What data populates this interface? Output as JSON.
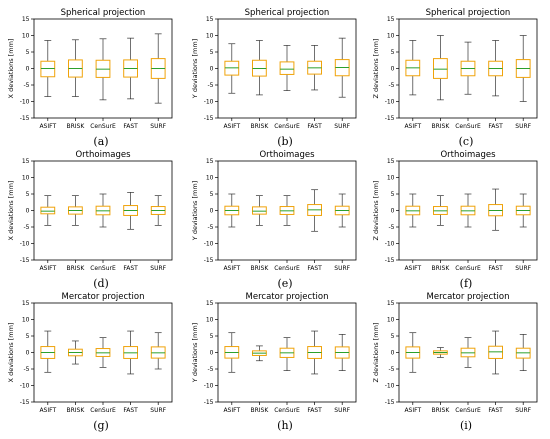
{
  "chart_data": [
    {
      "type": "box",
      "title": "Spherical projection",
      "ylabel": "X deviations [mm]",
      "label": "(a)",
      "categories": [
        "ASIFT",
        "BRISK",
        "CenSurE",
        "FAST",
        "SURF"
      ],
      "ylim": [
        -15,
        15
      ],
      "yticks": [
        -15,
        -10,
        -5,
        0,
        5,
        10,
        15
      ],
      "boxes": [
        {
          "min": -8.5,
          "q1": -2.5,
          "median": 0,
          "q3": 2.2,
          "max": 8.5
        },
        {
          "min": -8.5,
          "q1": -2.6,
          "median": 0,
          "q3": 2.6,
          "max": 8.7
        },
        {
          "min": -9.5,
          "q1": -2.7,
          "median": -0.2,
          "q3": 2.5,
          "max": 9
        },
        {
          "min": -9.2,
          "q1": -2.6,
          "median": 0,
          "q3": 2.6,
          "max": 9.2
        },
        {
          "min": -10.5,
          "q1": -3,
          "median": 0,
          "q3": 3,
          "max": 10.5
        }
      ]
    },
    {
      "type": "box",
      "title": "Spherical projection",
      "ylabel": "Y deviations [mm]",
      "label": "(b)",
      "categories": [
        "ASIFT",
        "BRISK",
        "CenSurE",
        "FAST",
        "SURF"
      ],
      "ylim": [
        -15,
        15
      ],
      "yticks": [
        -15,
        -10,
        -5,
        0,
        5,
        10,
        15
      ],
      "boxes": [
        {
          "min": -7.5,
          "q1": -2,
          "median": 0.2,
          "q3": 2.2,
          "max": 7.5
        },
        {
          "min": -8,
          "q1": -2.3,
          "median": 0,
          "q3": 2.5,
          "max": 8.5
        },
        {
          "min": -6.7,
          "q1": -1.8,
          "median": -0.2,
          "q3": 2,
          "max": 7
        },
        {
          "min": -6.5,
          "q1": -1.7,
          "median": 0.2,
          "q3": 2.2,
          "max": 7
        },
        {
          "min": -8.7,
          "q1": -2.2,
          "median": 0.3,
          "q3": 2.7,
          "max": 9.2
        }
      ]
    },
    {
      "type": "box",
      "title": "Spherical projection",
      "ylabel": "Z deviations [mm]",
      "label": "(c)",
      "categories": [
        "ASIFT",
        "BRISK",
        "CenSurE",
        "FAST",
        "SURF"
      ],
      "ylim": [
        -15,
        15
      ],
      "yticks": [
        -15,
        -10,
        -5,
        0,
        5,
        10,
        15
      ],
      "boxes": [
        {
          "min": -8,
          "q1": -2.2,
          "median": 0.2,
          "q3": 2.5,
          "max": 8.5
        },
        {
          "min": -9.5,
          "q1": -3,
          "median": -0.2,
          "q3": 3,
          "max": 10
        },
        {
          "min": -7.8,
          "q1": -2.2,
          "median": 0,
          "q3": 2.2,
          "max": 8
        },
        {
          "min": -8.3,
          "q1": -2.2,
          "median": 0,
          "q3": 2.2,
          "max": 8.5
        },
        {
          "min": -10,
          "q1": -2.7,
          "median": 0,
          "q3": 2.7,
          "max": 10
        }
      ]
    },
    {
      "type": "box",
      "title": "Orthoimages",
      "ylabel": "X deviations [mm]",
      "label": "(d)",
      "categories": [
        "ASIFT",
        "BRISK",
        "CenSurE",
        "FAST",
        "SURF"
      ],
      "ylim": [
        -15,
        15
      ],
      "yticks": [
        -15,
        -10,
        -5,
        0,
        5,
        10,
        15
      ],
      "boxes": [
        {
          "min": -4.5,
          "q1": -1,
          "median": -0.2,
          "q3": 1,
          "max": 4.5
        },
        {
          "min": -4.5,
          "q1": -1.1,
          "median": 0,
          "q3": 1.1,
          "max": 4.5
        },
        {
          "min": -5,
          "q1": -1.3,
          "median": -0.1,
          "q3": 1.3,
          "max": 5
        },
        {
          "min": -5.7,
          "q1": -1.5,
          "median": 0,
          "q3": 1.5,
          "max": 5.5
        },
        {
          "min": -4.5,
          "q1": -1.2,
          "median": 0,
          "q3": 1.2,
          "max": 4.5
        }
      ]
    },
    {
      "type": "box",
      "title": "Orthoimages",
      "ylabel": "Y deviations [mm]",
      "label": "(e)",
      "categories": [
        "ASIFT",
        "BRISK",
        "CenSurE",
        "FAST",
        "SURF"
      ],
      "ylim": [
        -15,
        15
      ],
      "yticks": [
        -15,
        -10,
        -5,
        0,
        5,
        10,
        15
      ],
      "boxes": [
        {
          "min": -5,
          "q1": -1.3,
          "median": 0,
          "q3": 1.3,
          "max": 5
        },
        {
          "min": -4.5,
          "q1": -1.1,
          "median": -0.2,
          "q3": 1.1,
          "max": 4.5
        },
        {
          "min": -4.5,
          "q1": -1.2,
          "median": -0.1,
          "q3": 1.2,
          "max": 4.5
        },
        {
          "min": -6.3,
          "q1": -1.5,
          "median": 0.2,
          "q3": 1.8,
          "max": 6.3
        },
        {
          "min": -5,
          "q1": -1.3,
          "median": 0,
          "q3": 1.3,
          "max": 5
        }
      ]
    },
    {
      "type": "box",
      "title": "Orthoimages",
      "ylabel": "Z deviations [mm]",
      "label": "(f)",
      "categories": [
        "ASIFT",
        "BRISK",
        "CenSurE",
        "FAST",
        "SURF"
      ],
      "ylim": [
        -15,
        15
      ],
      "yticks": [
        -15,
        -10,
        -5,
        0,
        5,
        10,
        15
      ],
      "boxes": [
        {
          "min": -5,
          "q1": -1.3,
          "median": -0.1,
          "q3": 1.3,
          "max": 5
        },
        {
          "min": -4.5,
          "q1": -1.2,
          "median": -0.1,
          "q3": 1.2,
          "max": 4.5
        },
        {
          "min": -5,
          "q1": -1.3,
          "median": -0.1,
          "q3": 1.3,
          "max": 5
        },
        {
          "min": -6,
          "q1": -1.6,
          "median": 0,
          "q3": 1.8,
          "max": 6.5
        },
        {
          "min": -5,
          "q1": -1.3,
          "median": 0,
          "q3": 1.3,
          "max": 5
        }
      ]
    },
    {
      "type": "box",
      "title": "Mercator projection",
      "ylabel": "X deviations [mm]",
      "label": "(g)",
      "categories": [
        "ASIFT",
        "BRISK",
        "CenSurE",
        "FAST",
        "SURF"
      ],
      "ylim": [
        -15,
        15
      ],
      "yticks": [
        -15,
        -10,
        -5,
        0,
        5,
        10,
        15
      ],
      "boxes": [
        {
          "min": -6,
          "q1": -1.8,
          "median": 0,
          "q3": 1.8,
          "max": 6.5
        },
        {
          "min": -3.5,
          "q1": -1,
          "median": 0,
          "q3": 1,
          "max": 3.5
        },
        {
          "min": -4.5,
          "q1": -1.2,
          "median": -0.1,
          "q3": 1.2,
          "max": 4.5
        },
        {
          "min": -6.5,
          "q1": -1.8,
          "median": -0.1,
          "q3": 1.8,
          "max": 6.5
        },
        {
          "min": -5,
          "q1": -1.7,
          "median": -0.1,
          "q3": 1.7,
          "max": 6
        }
      ]
    },
    {
      "type": "box",
      "title": "Mercator projection",
      "ylabel": "Y deviations [mm]",
      "label": "(h)",
      "categories": [
        "ASIFT",
        "BRISK",
        "CenSurE",
        "FAST",
        "SURF"
      ],
      "ylim": [
        -15,
        15
      ],
      "yticks": [
        -15,
        -10,
        -5,
        0,
        5,
        10,
        15
      ],
      "boxes": [
        {
          "min": -6,
          "q1": -1.7,
          "median": 0,
          "q3": 1.8,
          "max": 6
        },
        {
          "min": -2.5,
          "q1": -0.9,
          "median": -0.2,
          "q3": 0.5,
          "max": 2
        },
        {
          "min": -5.5,
          "q1": -1.5,
          "median": -0.1,
          "q3": 1.3,
          "max": 4.5
        },
        {
          "min": -6.5,
          "q1": -1.8,
          "median": 0,
          "q3": 1.8,
          "max": 6.5
        },
        {
          "min": -5.5,
          "q1": -1.7,
          "median": 0,
          "q3": 1.7,
          "max": 5.5
        }
      ]
    },
    {
      "type": "box",
      "title": "Mercator projection",
      "ylabel": "Z deviations [mm]",
      "label": "(i)",
      "categories": [
        "ASIFT",
        "BRISK",
        "CenSurE",
        "FAST",
        "SURF"
      ],
      "ylim": [
        -15,
        15
      ],
      "yticks": [
        -15,
        -10,
        -5,
        0,
        5,
        10,
        15
      ],
      "boxes": [
        {
          "min": -6,
          "q1": -1.7,
          "median": 0,
          "q3": 1.7,
          "max": 6
        },
        {
          "min": -1.5,
          "q1": -0.5,
          "median": 0,
          "q3": 0.5,
          "max": 1.5
        },
        {
          "min": -4.5,
          "q1": -1.3,
          "median": -0.1,
          "q3": 1.3,
          "max": 4.5
        },
        {
          "min": -6.5,
          "q1": -1.8,
          "median": 0.2,
          "q3": 1.9,
          "max": 6.5
        },
        {
          "min": -5.5,
          "q1": -1.7,
          "median": -0.1,
          "q3": 1.3,
          "max": 5.5
        }
      ]
    }
  ],
  "colors": {
    "box": "#f0a30a",
    "median": "#2ca02c",
    "whisker": "#333333",
    "axis": "#000000"
  }
}
